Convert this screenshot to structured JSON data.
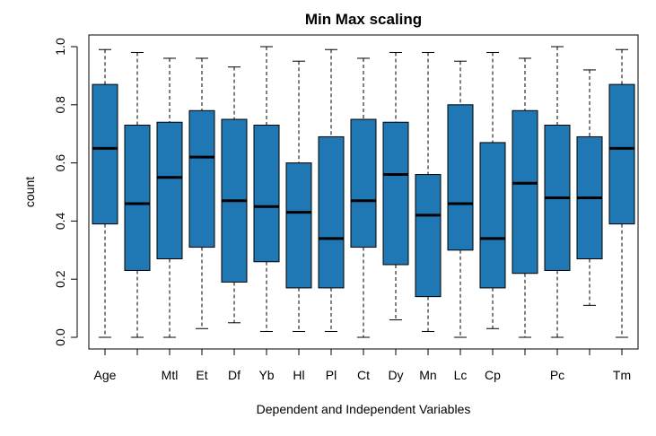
{
  "chart_data": {
    "type": "boxplot",
    "title": "Min Max scaling",
    "xlabel": "Dependent and Independent Variables",
    "ylabel": "count",
    "ylim": [
      -0.04,
      1.04
    ],
    "yticks": [
      "0.0",
      "0.2",
      "0.4",
      "0.6",
      "0.8",
      "1.0"
    ],
    "box_color": "#1F77B4",
    "categories": [
      "Age",
      "",
      "Mtl",
      "Et",
      "Df",
      "Yb",
      "Hl",
      "Pl",
      "Ct",
      "Dy",
      "Mn",
      "Lc",
      "Cp",
      "",
      "Pc",
      "",
      "Tm"
    ],
    "boxes": [
      {
        "min": 0.0,
        "q1": 0.39,
        "median": 0.65,
        "q3": 0.87,
        "max": 0.99
      },
      {
        "min": 0.0,
        "q1": 0.23,
        "median": 0.46,
        "q3": 0.73,
        "max": 0.98
      },
      {
        "min": 0.0,
        "q1": 0.27,
        "median": 0.55,
        "q3": 0.74,
        "max": 0.96
      },
      {
        "min": 0.03,
        "q1": 0.31,
        "median": 0.62,
        "q3": 0.78,
        "max": 0.96
      },
      {
        "min": 0.05,
        "q1": 0.19,
        "median": 0.47,
        "q3": 0.75,
        "max": 0.93
      },
      {
        "min": 0.02,
        "q1": 0.26,
        "median": 0.45,
        "q3": 0.73,
        "max": 1.0
      },
      {
        "min": 0.02,
        "q1": 0.17,
        "median": 0.43,
        "q3": 0.6,
        "max": 0.95
      },
      {
        "min": 0.02,
        "q1": 0.17,
        "median": 0.34,
        "q3": 0.69,
        "max": 0.99
      },
      {
        "min": 0.0,
        "q1": 0.31,
        "median": 0.47,
        "q3": 0.75,
        "max": 0.96
      },
      {
        "min": 0.06,
        "q1": 0.25,
        "median": 0.56,
        "q3": 0.74,
        "max": 0.98
      },
      {
        "min": 0.02,
        "q1": 0.14,
        "median": 0.42,
        "q3": 0.56,
        "max": 0.98
      },
      {
        "min": 0.0,
        "q1": 0.3,
        "median": 0.46,
        "q3": 0.8,
        "max": 0.95
      },
      {
        "min": 0.03,
        "q1": 0.17,
        "median": 0.34,
        "q3": 0.67,
        "max": 0.98
      },
      {
        "min": 0.0,
        "q1": 0.22,
        "median": 0.53,
        "q3": 0.78,
        "max": 0.96
      },
      {
        "min": 0.0,
        "q1": 0.23,
        "median": 0.48,
        "q3": 0.73,
        "max": 1.0
      },
      {
        "min": 0.11,
        "q1": 0.27,
        "median": 0.48,
        "q3": 0.69,
        "max": 0.92
      },
      {
        "min": 0.0,
        "q1": 0.39,
        "median": 0.65,
        "q3": 0.87,
        "max": 0.99
      }
    ]
  }
}
